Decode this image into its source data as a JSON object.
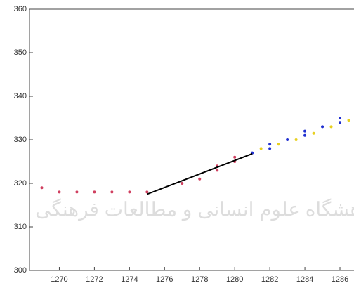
{
  "chart_data": {
    "type": "scatter",
    "watermark": "پژوهشگاه علوم انسانی و مطالعات فرهنگی",
    "xlim": [
      1268.3,
      1286.8
    ],
    "ylim": [
      300,
      360
    ],
    "xticks": [
      1270,
      1272,
      1274,
      1276,
      1278,
      1280,
      1282,
      1284,
      1286
    ],
    "yticks": [
      300,
      310,
      320,
      330,
      340,
      350,
      360
    ],
    "series": [
      {
        "color": "#d04060",
        "mode": "markers",
        "x": [
          1269,
          1270,
          1271,
          1272,
          1273,
          1274,
          1275,
          1277,
          1278,
          1279,
          1279,
          1280,
          1280
        ],
        "y": [
          319,
          318,
          318,
          318,
          318,
          318,
          318,
          320,
          321,
          323,
          324,
          325,
          326
        ]
      },
      {
        "color": "#2030d0",
        "mode": "markers",
        "x": [
          1281,
          1282,
          1282,
          1283,
          1284,
          1284,
          1285,
          1286,
          1286
        ],
        "y": [
          327,
          328,
          329,
          330,
          331,
          332,
          333,
          334,
          335
        ]
      },
      {
        "color": "#e8d020",
        "mode": "markers",
        "x": [
          1281.5,
          1282.5,
          1283.5,
          1284.5,
          1285.5,
          1286.5
        ],
        "y": [
          328,
          329,
          330,
          331.5,
          333,
          334.5
        ]
      },
      {
        "color": "#000000",
        "mode": "line",
        "x": [
          1275,
          1281
        ],
        "y": [
          317.5,
          326.8
        ]
      }
    ]
  }
}
